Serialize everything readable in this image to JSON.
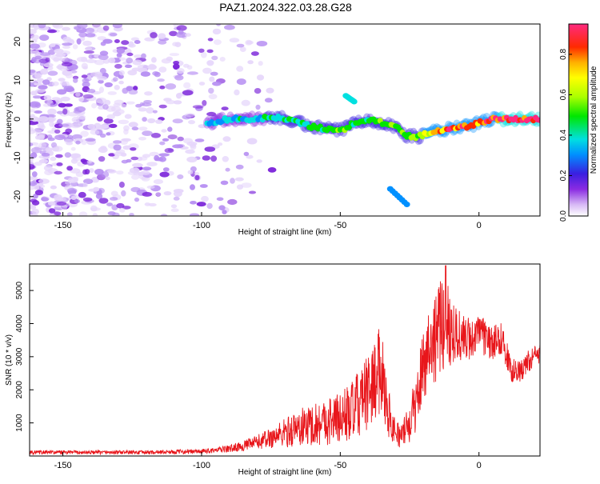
{
  "title": "PAZ1.2024.322.03.28.G28",
  "colors": {
    "snr_line": "#e8161b",
    "blob_weak": "#e6d6fb",
    "blob_mid": "#b58cf2",
    "blob_strong": "#7a22d9"
  },
  "chart_data": [
    {
      "type": "heatmap",
      "xlabel": "Height of straight line (km)",
      "ylabel": "Frequency (Hz)",
      "xlim": [
        -162,
        22
      ],
      "ylim": [
        -25,
        24.5
      ],
      "xticks": [
        -150,
        -100,
        -50,
        0
      ],
      "yticks": [
        -20,
        -10,
        0,
        10,
        20
      ],
      "colorbar": {
        "label": "Normalized spectral amplitude",
        "range": [
          0,
          0.95
        ],
        "ticks": [
          0.0,
          0.2,
          0.4,
          0.6,
          0.8
        ],
        "colormap": "rainbow (violet to magenta)"
      },
      "ridge": {
        "description": "dominant signal frequency vs height",
        "x": [
          -98,
          -90,
          -80,
          -75,
          -70,
          -65,
          -60,
          -55,
          -50,
          -45,
          -40,
          -35,
          -30,
          -27,
          -24,
          -22,
          -20,
          -15,
          -10,
          -5,
          0,
          5,
          10,
          15,
          20,
          22
        ],
        "y": [
          -1,
          0,
          0,
          0.5,
          0,
          -1,
          -2,
          -2.5,
          -3,
          -1,
          0,
          -1,
          -2,
          -4,
          -4.5,
          -4.5,
          -4,
          -3,
          -2.5,
          -2,
          -1,
          0,
          0,
          0,
          0,
          0
        ],
        "amplitude": [
          0.3,
          0.35,
          0.35,
          0.4,
          0.4,
          0.4,
          0.45,
          0.45,
          0.5,
          0.45,
          0.45,
          0.5,
          0.5,
          0.55,
          0.55,
          0.55,
          0.6,
          0.75,
          0.8,
          0.85,
          0.8,
          0.85,
          0.9,
          0.9,
          0.9,
          0.9
        ]
      },
      "secondary_features": [
        {
          "x": [
            -48,
            -45
          ],
          "y": [
            6,
            4.5
          ],
          "amplitude": 0.35
        },
        {
          "x": [
            -32,
            -26
          ],
          "y": [
            -18,
            -22
          ],
          "amplitude": 0.25
        }
      ],
      "noise_region_x": [
        -162,
        -80
      ]
    },
    {
      "type": "line",
      "xlabel": "Height of straight line (km)",
      "ylabel": "SNR (10 * v/v)",
      "xlim": [
        -162,
        22
      ],
      "ylim": [
        0,
        5800
      ],
      "xticks": [
        -150,
        -100,
        -50,
        0
      ],
      "yticks": [
        1000,
        2000,
        3000,
        4000,
        5000
      ],
      "series": [
        {
          "x": [
            -162,
            -140,
            -120,
            -100,
            -95,
            -90,
            -85,
            -80,
            -75,
            -70,
            -65,
            -60,
            -55,
            -50,
            -45,
            -40,
            -37,
            -35,
            -33,
            -30,
            -28,
            -25,
            -22,
            -20,
            -18,
            -15,
            -12,
            -10,
            -8,
            -5,
            -2,
            0,
            3,
            5,
            8,
            10,
            12,
            15,
            18,
            20,
            22
          ],
          "y": [
            110,
            110,
            110,
            140,
            170,
            220,
            300,
            420,
            550,
            700,
            850,
            950,
            1050,
            1150,
            1400,
            1900,
            2400,
            2700,
            1400,
            700,
            600,
            1000,
            1800,
            2900,
            3300,
            3700,
            4100,
            3900,
            3700,
            3500,
            3600,
            3700,
            3500,
            3400,
            3600,
            3000,
            2600,
            2500,
            2900,
            3000,
            3100
          ],
          "noise_amplitude": [
            60,
            60,
            60,
            70,
            80,
            110,
            150,
            220,
            320,
            450,
            580,
            650,
            720,
            800,
            950,
            1150,
            1300,
            1300,
            800,
            420,
            350,
            600,
            1000,
            1200,
            1300,
            1400,
            1500,
            1200,
            900,
            700,
            650,
            600,
            550,
            500,
            500,
            450,
            400,
            350,
            350,
            300,
            300
          ],
          "peak": {
            "x": -12,
            "y": 5750
          }
        }
      ]
    }
  ]
}
